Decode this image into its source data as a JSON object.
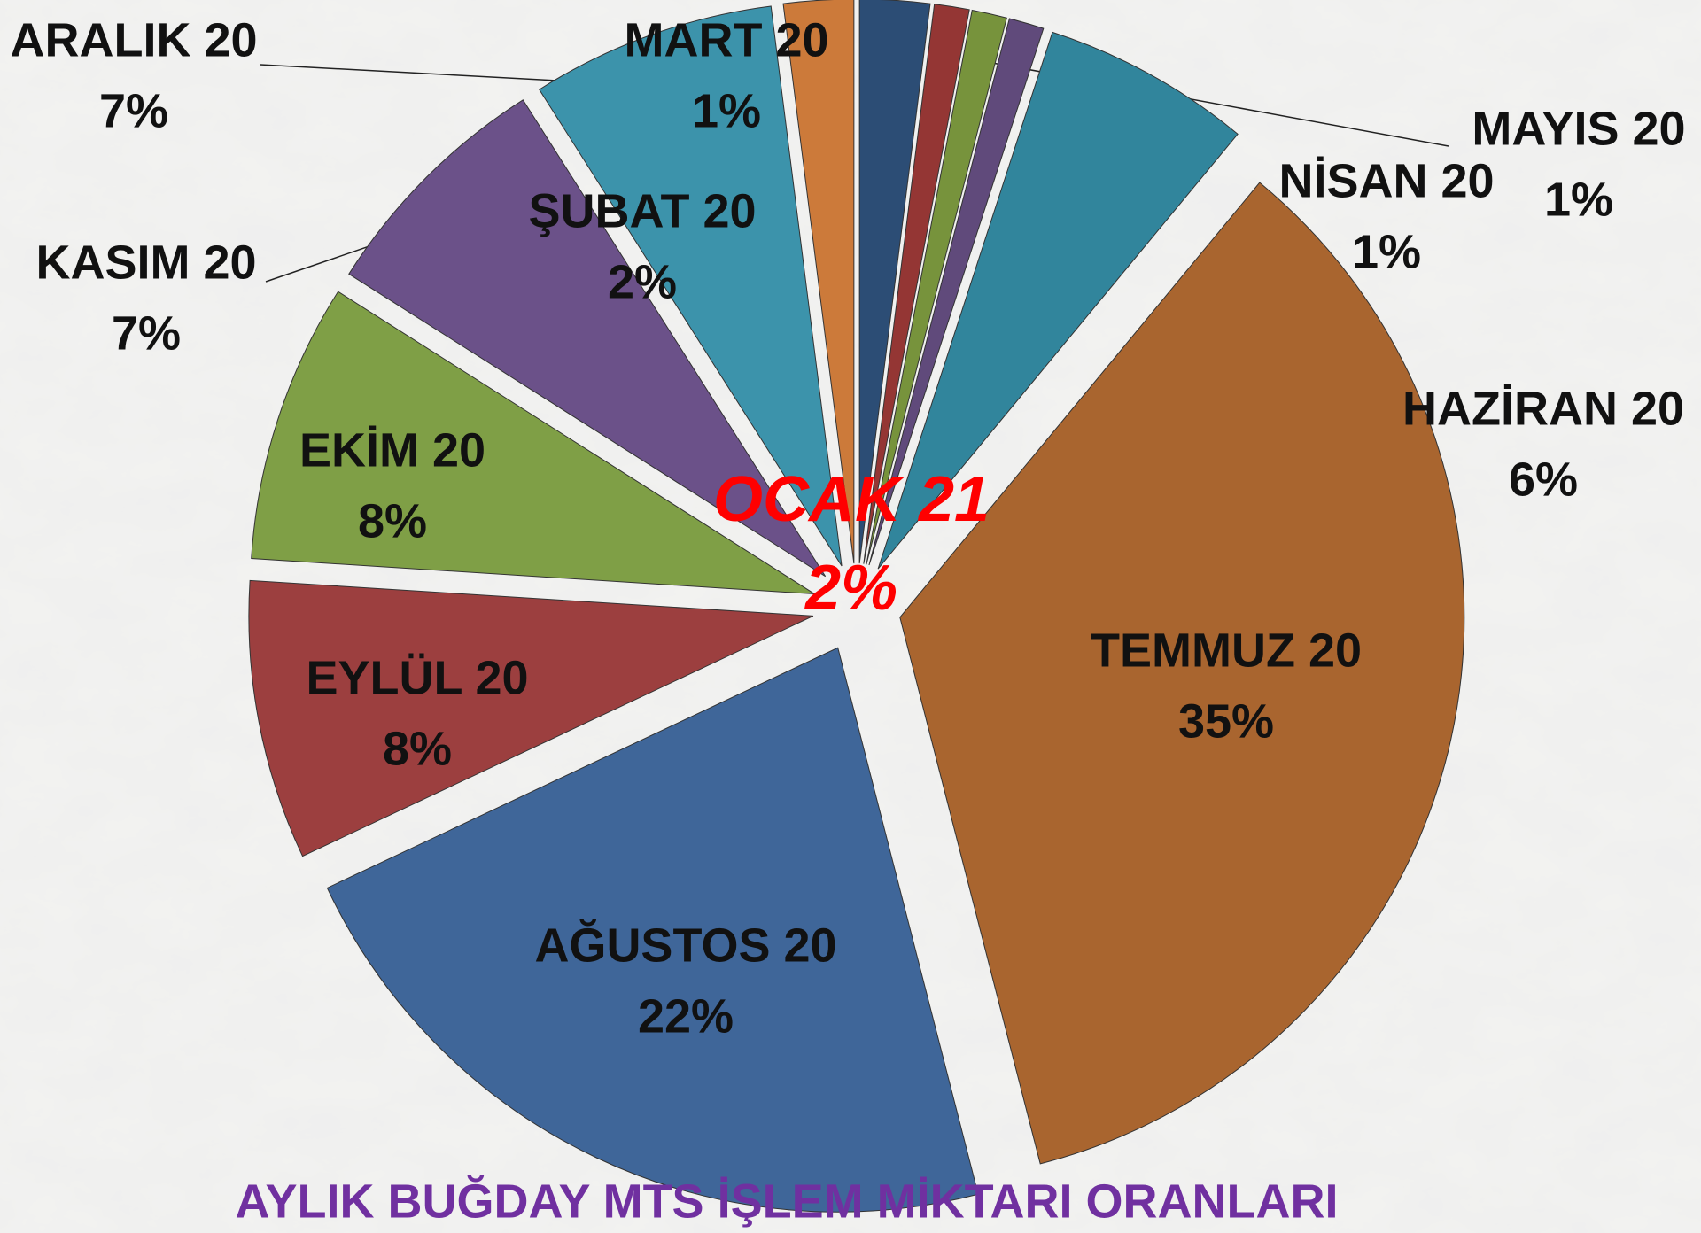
{
  "chart_data": {
    "type": "pie",
    "title": "AYLIK BUĞDAY MTS İŞLEM MİKTARI ORANLARI",
    "categories": [
      "ŞUBAT 20",
      "MART 20",
      "NİSAN 20",
      "MAYIS 20",
      "HAZİRAN 20",
      "TEMMUZ 20",
      "AĞUSTOS 20",
      "EYLÜL 20",
      "EKİM 20",
      "KASIM 20",
      "ARALIK 20",
      "OCAK 21"
    ],
    "values": [
      2,
      1,
      1,
      1,
      6,
      35,
      22,
      8,
      8,
      7,
      7,
      2
    ],
    "value_labels": [
      "2%",
      "1%",
      "1%",
      "1%",
      "6%",
      "35%",
      "22%",
      "8%",
      "8%",
      "7%",
      "7%",
      "2%"
    ],
    "colors": [
      "#2c4d75",
      "#943634",
      "#77933c",
      "#604a7b",
      "#31859c",
      "#a9652f",
      "#3f6699",
      "#9c3f3f",
      "#7f9f46",
      "#6b5189",
      "#3c93ab",
      "#cc7a3a"
    ]
  }
}
